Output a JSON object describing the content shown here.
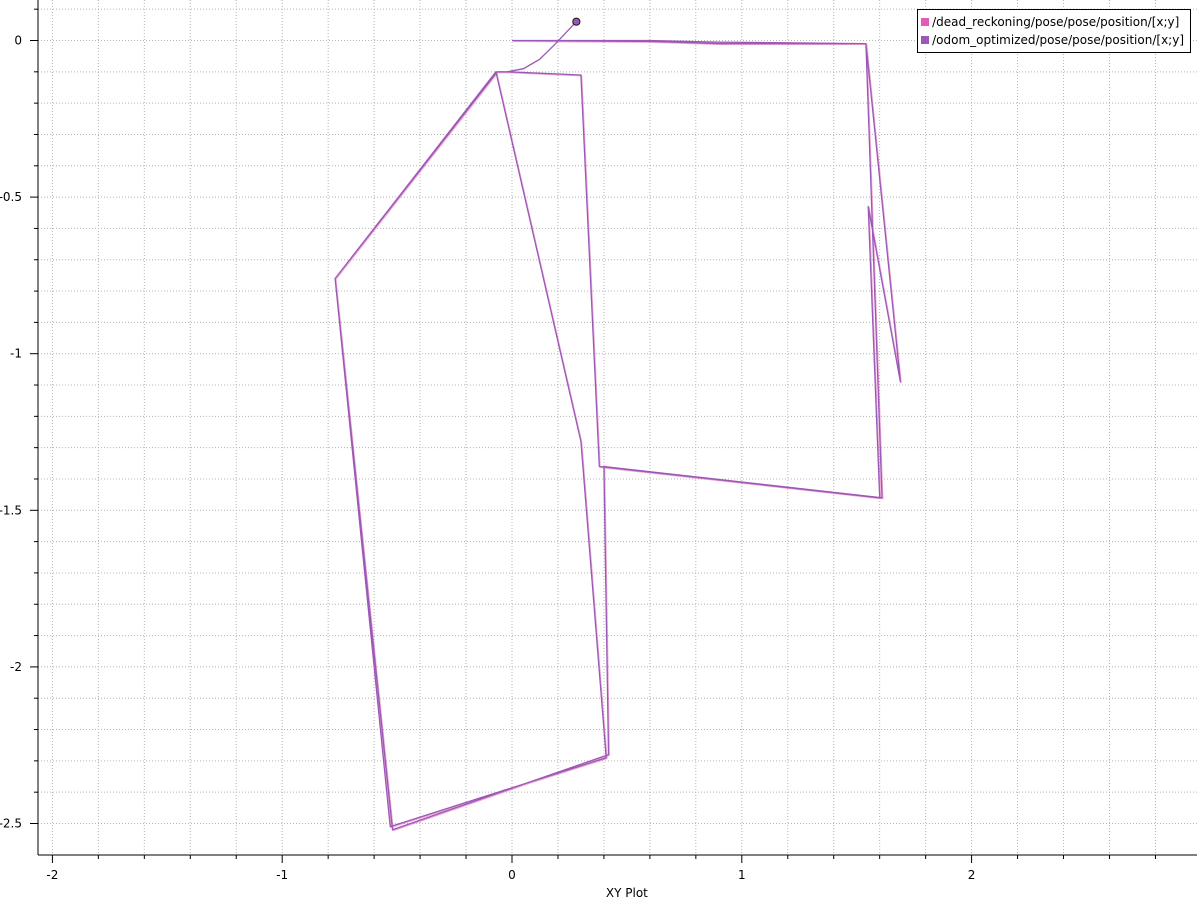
{
  "chart_data": {
    "type": "line",
    "title": "",
    "xlabel": "XY Plot",
    "ylabel": "",
    "xlim": [
      -2.05,
      3.0
    ],
    "ylim": [
      -2.58,
      0.12
    ],
    "grid": true,
    "legend_position": "top-right",
    "x_major_ticks": [
      -2,
      -1,
      0,
      1,
      2
    ],
    "x_major_tick_labels": [
      "-2",
      "-1",
      "0",
      "1",
      "2"
    ],
    "y_major_ticks": [
      0,
      -0.5,
      -1,
      -1.5,
      -2,
      -2.5
    ],
    "y_major_tick_labels": [
      "0",
      "-0.5",
      "-1",
      "-1.5",
      "-2",
      "-2.5"
    ],
    "series": [
      {
        "name": "/dead_reckoning/pose/pose/position/[x;y]",
        "color": "#e15cb5",
        "points": [
          [
            0.0,
            0.0
          ],
          [
            0.6,
            0.0
          ],
          [
            0.9,
            -0.005
          ],
          [
            1.54,
            -0.01
          ],
          [
            1.61,
            -1.46
          ],
          [
            0.4,
            -1.36
          ],
          [
            0.42,
            -2.28
          ],
          [
            -0.52,
            -2.52
          ],
          [
            -0.77,
            -0.76
          ],
          [
            -0.07,
            -0.1
          ],
          [
            0.3,
            -1.28
          ],
          [
            0.41,
            -2.29
          ],
          [
            -0.53,
            -2.51
          ],
          [
            -0.77,
            -0.76
          ],
          [
            -0.065,
            -0.1
          ],
          [
            -0.02,
            -0.1
          ],
          [
            0.3,
            -0.11
          ],
          [
            0.38,
            -1.36
          ],
          [
            1.6,
            -1.46
          ],
          [
            1.55,
            -0.53
          ],
          [
            1.69,
            -1.09
          ],
          [
            1.54,
            -0.01
          ],
          [
            0.9,
            -0.01
          ],
          [
            0.6,
            -0.003
          ],
          [
            0.0,
            0.0
          ]
        ]
      },
      {
        "name": "/odom_optimized/pose/pose/position/[x;y]",
        "color": "#9b59b6",
        "points": [
          [
            0.0,
            0.0
          ],
          [
            0.6,
            0.0
          ],
          [
            0.9,
            -0.005
          ],
          [
            1.54,
            -0.01
          ],
          [
            1.61,
            -1.46
          ],
          [
            0.4,
            -1.36
          ],
          [
            0.42,
            -2.28
          ],
          [
            -0.52,
            -2.52
          ],
          [
            -0.77,
            -0.76
          ],
          [
            -0.07,
            -0.1
          ],
          [
            0.3,
            -1.28
          ],
          [
            0.41,
            -2.29
          ],
          [
            -0.53,
            -2.51
          ],
          [
            -0.77,
            -0.76
          ],
          [
            -0.065,
            -0.1
          ],
          [
            -0.02,
            -0.1
          ],
          [
            0.3,
            -0.11
          ],
          [
            0.38,
            -1.36
          ],
          [
            1.6,
            -1.46
          ],
          [
            1.55,
            -0.53
          ],
          [
            1.69,
            -1.09
          ],
          [
            1.54,
            -0.01
          ],
          [
            0.9,
            -0.01
          ],
          [
            0.6,
            -0.003
          ],
          [
            0.0,
            0.0
          ]
        ],
        "extra_arc": [
          [
            -0.02,
            -0.1
          ],
          [
            0.05,
            -0.09
          ],
          [
            0.12,
            -0.06
          ],
          [
            0.19,
            -0.01
          ],
          [
            0.28,
            0.06
          ]
        ]
      }
    ],
    "current_marker": {
      "x": 0.28,
      "y": 0.06,
      "color": "#9b59b6"
    }
  }
}
